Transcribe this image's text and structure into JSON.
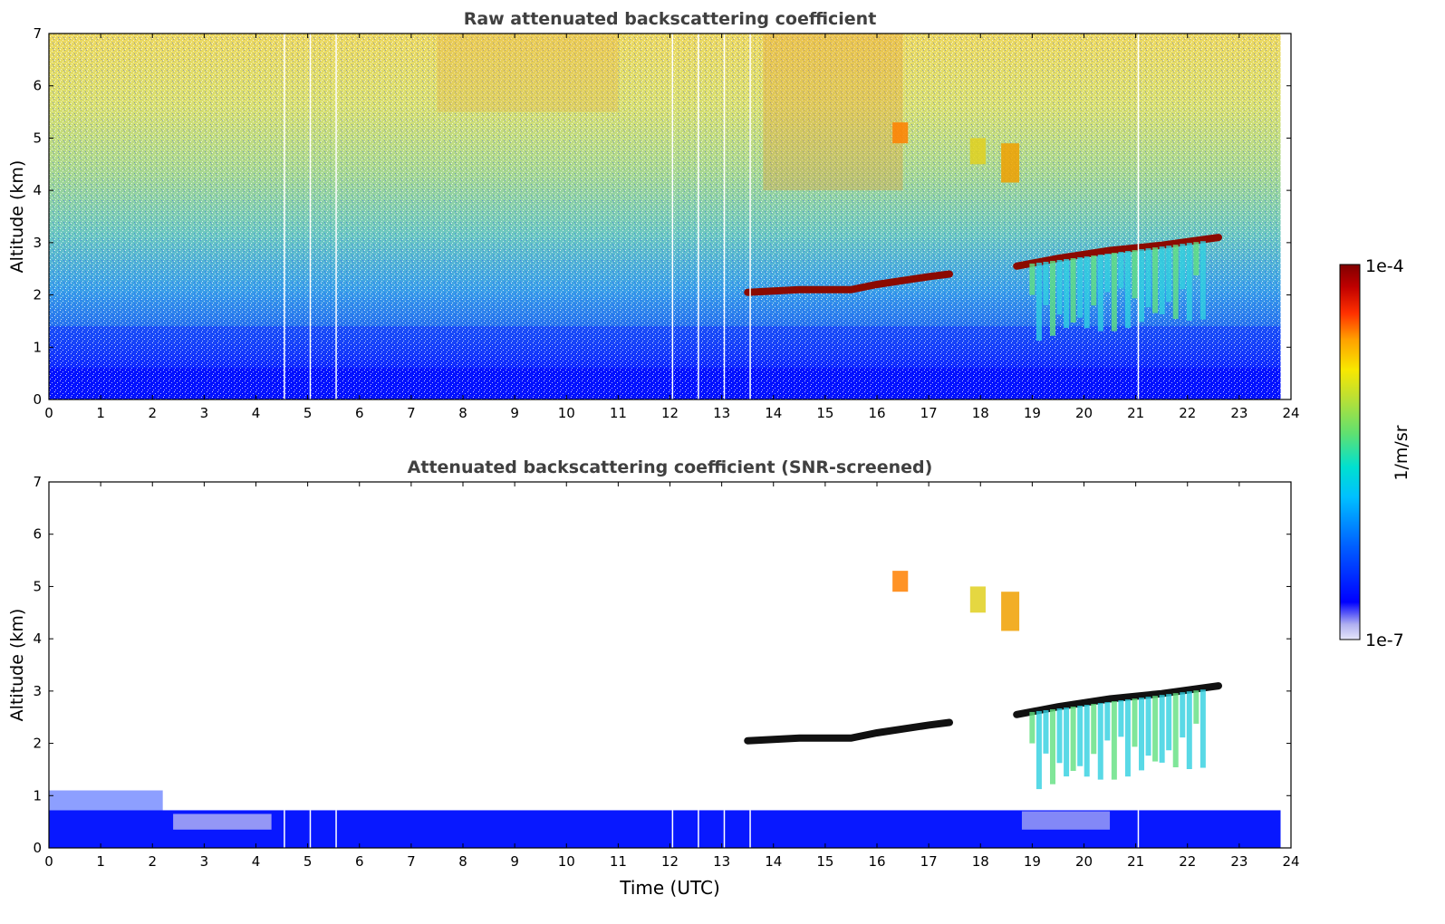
{
  "chart_data": [
    {
      "type": "heatmap",
      "title": "Raw attenuated backscattering coefficient",
      "xlabel": "",
      "ylabel": "Altitude (km)",
      "xlim": [
        0,
        24
      ],
      "ylim": [
        0,
        7
      ],
      "x_ticks": [
        0,
        1,
        2,
        3,
        4,
        5,
        6,
        7,
        8,
        9,
        10,
        11,
        12,
        13,
        14,
        15,
        16,
        17,
        18,
        19,
        20,
        21,
        22,
        23,
        24
      ],
      "y_ticks": [
        0,
        1,
        2,
        3,
        4,
        5,
        6,
        7
      ],
      "features": [
        {
          "label": "cloud layer",
          "t": [
            13.5,
            14.5,
            15.5,
            16.0,
            17.0,
            17.4
          ],
          "alt": [
            2.05,
            2.1,
            2.1,
            2.2,
            2.35,
            2.4
          ]
        },
        {
          "label": "cloud layer",
          "t": [
            18.7,
            19.5,
            20.5,
            21.5,
            22.6
          ],
          "alt": [
            2.55,
            2.7,
            2.85,
            2.95,
            3.1
          ]
        },
        {
          "label": "virga",
          "t_range": [
            19.0,
            22.3
          ],
          "alt_range": [
            1.3,
            2.7
          ]
        },
        {
          "label": "upper layer",
          "t_range": [
            16.3,
            18.7
          ],
          "alt_range": [
            4.2,
            5.3
          ]
        }
      ]
    },
    {
      "type": "heatmap",
      "title": "Attenuated backscattering coefficient (SNR-screened)",
      "xlabel": "Time (UTC)",
      "ylabel": "Altitude (km)",
      "xlim": [
        0,
        24
      ],
      "ylim": [
        0,
        7
      ],
      "x_ticks": [
        0,
        1,
        2,
        3,
        4,
        5,
        6,
        7,
        8,
        9,
        10,
        11,
        12,
        13,
        14,
        15,
        16,
        17,
        18,
        19,
        20,
        21,
        22,
        23,
        24
      ],
      "y_ticks": [
        0,
        1,
        2,
        3,
        4,
        5,
        6,
        7
      ]
    }
  ],
  "colorbar": {
    "max_label": "1e-4",
    "min_label": "1e-7",
    "units": "1/m/sr",
    "colors": [
      "#e6e6fa",
      "#b0b0f0",
      "#0000ff",
      "#0060ff",
      "#00b0ff",
      "#00e0e0",
      "#40e080",
      "#a0e040",
      "#f0f000",
      "#ffa000",
      "#ff3000",
      "#c00000",
      "#800000"
    ]
  }
}
